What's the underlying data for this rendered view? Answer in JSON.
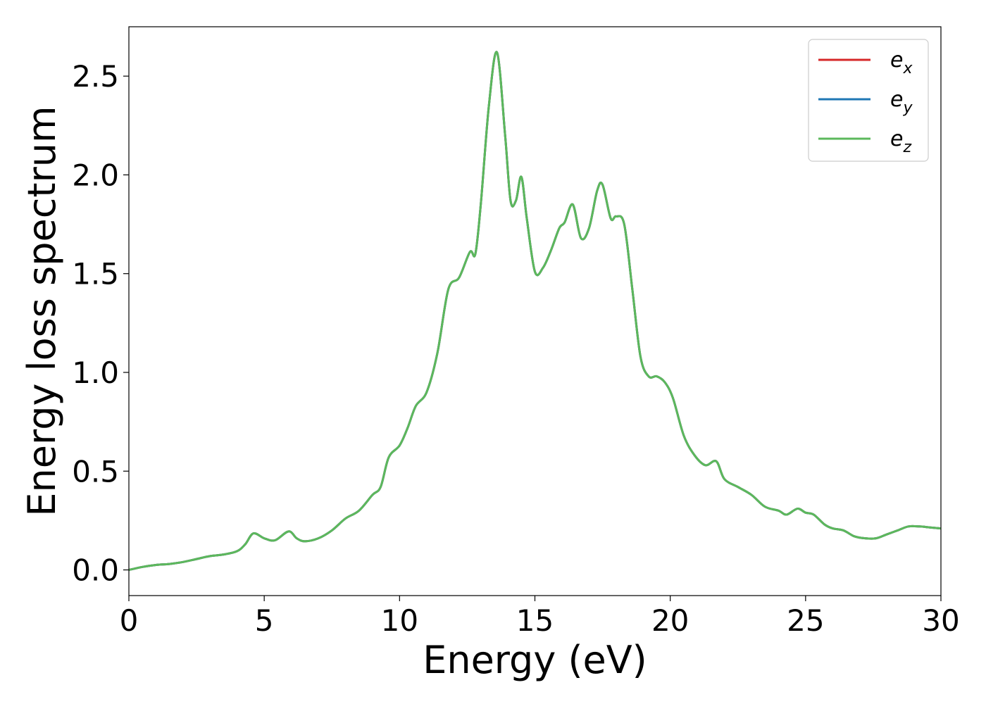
{
  "chart_data": {
    "type": "line",
    "xlabel": "Energy (eV)",
    "ylabel": "Energy loss spectrum",
    "xlim": [
      0,
      30
    ],
    "ylim": [
      -0.13,
      2.75
    ],
    "xticks": [
      0,
      5,
      10,
      15,
      20,
      25,
      30
    ],
    "xtick_labels": [
      "0",
      "5",
      "10",
      "15",
      "20",
      "25",
      "30"
    ],
    "yticks": [
      0.0,
      0.5,
      1.0,
      1.5,
      2.0,
      2.5
    ],
    "ytick_labels": [
      "0.0",
      "0.5",
      "1.0",
      "1.5",
      "2.0",
      "2.5"
    ],
    "grid": false,
    "legend_position": "top-right",
    "x": [
      0,
      0.5,
      1,
      1.5,
      2,
      2.5,
      3,
      3.5,
      4,
      4.3,
      4.6,
      5,
      5.4,
      5.9,
      6.2,
      6.5,
      7,
      7.5,
      8,
      8.5,
      9,
      9.3,
      9.6,
      10,
      10.3,
      10.6,
      11,
      11.4,
      11.8,
      12.2,
      12.6,
      12.8,
      13,
      13.3,
      13.6,
      13.9,
      14.1,
      14.3,
      14.5,
      14.7,
      15,
      15.3,
      15.6,
      15.9,
      16.1,
      16.4,
      16.7,
      17,
      17.3,
      17.5,
      17.8,
      18,
      18.3,
      18.6,
      18.9,
      19.2,
      19.5,
      19.8,
      20.1,
      20.5,
      20.9,
      21.3,
      21.7,
      22,
      22.5,
      23,
      23.5,
      24,
      24.3,
      24.7,
      25,
      25.3,
      25.7,
      26,
      26.4,
      26.8,
      27.2,
      27.6,
      28,
      28.4,
      28.8,
      29.2,
      29.6,
      30
    ],
    "series": [
      {
        "name": "e",
        "subscript": "x",
        "color": "#d62728",
        "values": [
          0,
          0.015,
          0.025,
          0.03,
          0.04,
          0.055,
          0.07,
          0.078,
          0.095,
          0.13,
          0.185,
          0.16,
          0.15,
          0.195,
          0.16,
          0.145,
          0.16,
          0.2,
          0.26,
          0.3,
          0.38,
          0.42,
          0.57,
          0.63,
          0.72,
          0.83,
          0.9,
          1.1,
          1.42,
          1.48,
          1.61,
          1.6,
          1.85,
          2.35,
          2.62,
          2.2,
          1.87,
          1.87,
          1.99,
          1.78,
          1.51,
          1.53,
          1.62,
          1.73,
          1.76,
          1.85,
          1.68,
          1.73,
          1.92,
          1.95,
          1.78,
          1.79,
          1.75,
          1.42,
          1.08,
          0.98,
          0.98,
          0.95,
          0.87,
          0.68,
          0.58,
          0.53,
          0.55,
          0.46,
          0.42,
          0.38,
          0.32,
          0.3,
          0.28,
          0.31,
          0.29,
          0.28,
          0.23,
          0.21,
          0.2,
          0.17,
          0.16,
          0.16,
          0.18,
          0.2,
          0.22,
          0.22,
          0.215,
          0.21
        ]
      },
      {
        "name": "e",
        "subscript": "y",
        "color": "#1f77b4",
        "values": [
          0,
          0.015,
          0.025,
          0.03,
          0.04,
          0.055,
          0.07,
          0.078,
          0.095,
          0.13,
          0.185,
          0.16,
          0.15,
          0.195,
          0.16,
          0.145,
          0.16,
          0.2,
          0.26,
          0.3,
          0.38,
          0.42,
          0.57,
          0.63,
          0.72,
          0.83,
          0.9,
          1.1,
          1.42,
          1.48,
          1.61,
          1.6,
          1.85,
          2.35,
          2.62,
          2.2,
          1.87,
          1.87,
          1.99,
          1.78,
          1.51,
          1.53,
          1.62,
          1.73,
          1.76,
          1.85,
          1.68,
          1.73,
          1.92,
          1.95,
          1.78,
          1.79,
          1.75,
          1.42,
          1.08,
          0.98,
          0.98,
          0.95,
          0.87,
          0.68,
          0.58,
          0.53,
          0.55,
          0.46,
          0.42,
          0.38,
          0.32,
          0.3,
          0.28,
          0.31,
          0.29,
          0.28,
          0.23,
          0.21,
          0.2,
          0.17,
          0.16,
          0.16,
          0.18,
          0.2,
          0.22,
          0.22,
          0.215,
          0.21
        ]
      },
      {
        "name": "e",
        "subscript": "z",
        "color": "#5cb85c",
        "values": [
          0,
          0.015,
          0.025,
          0.03,
          0.04,
          0.055,
          0.07,
          0.078,
          0.095,
          0.13,
          0.185,
          0.16,
          0.15,
          0.195,
          0.16,
          0.145,
          0.16,
          0.2,
          0.26,
          0.3,
          0.38,
          0.42,
          0.57,
          0.63,
          0.72,
          0.83,
          0.9,
          1.1,
          1.42,
          1.48,
          1.61,
          1.6,
          1.85,
          2.35,
          2.62,
          2.2,
          1.87,
          1.87,
          1.99,
          1.78,
          1.51,
          1.53,
          1.62,
          1.73,
          1.76,
          1.85,
          1.68,
          1.73,
          1.92,
          1.95,
          1.78,
          1.79,
          1.75,
          1.42,
          1.08,
          0.98,
          0.98,
          0.95,
          0.87,
          0.68,
          0.58,
          0.53,
          0.55,
          0.46,
          0.42,
          0.38,
          0.32,
          0.3,
          0.28,
          0.31,
          0.29,
          0.28,
          0.23,
          0.21,
          0.2,
          0.17,
          0.16,
          0.16,
          0.18,
          0.2,
          0.22,
          0.22,
          0.215,
          0.21
        ]
      }
    ]
  }
}
